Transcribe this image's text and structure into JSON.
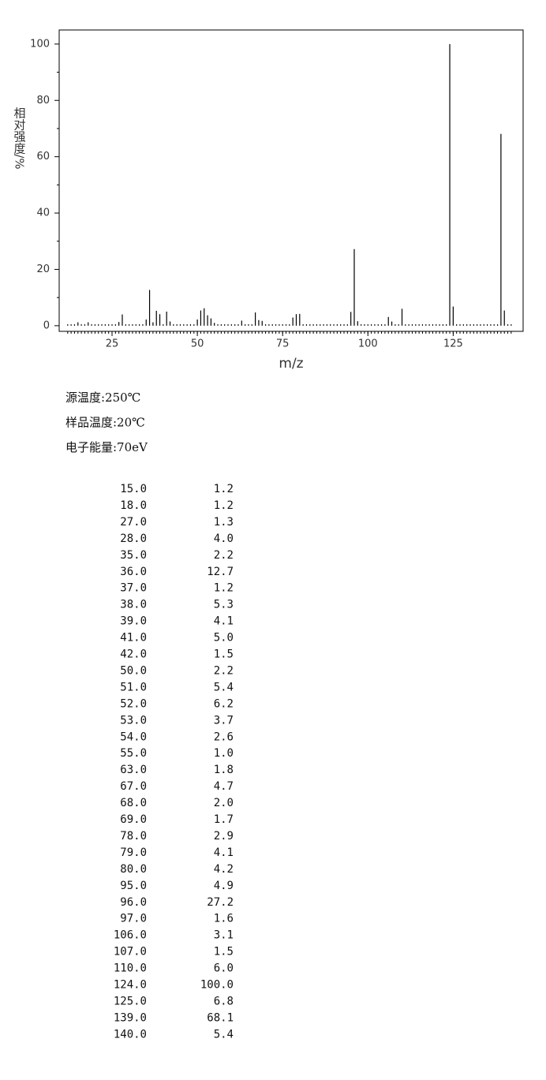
{
  "chart_data": {
    "type": "bar",
    "xlabel": "m/z",
    "ylabel": "相对强度/%",
    "color": "#000000",
    "x": [
      12,
      13,
      14,
      15,
      16,
      17,
      18,
      19,
      20,
      21,
      22,
      23,
      24,
      25,
      26,
      27,
      28,
      29,
      30,
      31,
      32,
      33,
      34,
      35,
      36,
      37,
      38,
      39,
      40,
      41,
      42,
      43,
      44,
      45,
      46,
      47,
      48,
      49,
      50,
      51,
      52,
      53,
      54,
      55,
      56,
      57,
      58,
      59,
      60,
      61,
      62,
      63,
      64,
      65,
      66,
      67,
      68,
      69,
      70,
      71,
      72,
      73,
      74,
      75,
      76,
      77,
      78,
      79,
      80,
      81,
      82,
      83,
      84,
      85,
      86,
      87,
      88,
      89,
      90,
      91,
      92,
      93,
      94,
      95,
      96,
      97,
      98,
      99,
      100,
      101,
      102,
      103,
      104,
      105,
      106,
      107,
      108,
      109,
      110,
      111,
      112,
      113,
      114,
      115,
      116,
      117,
      118,
      119,
      120,
      121,
      122,
      123,
      124,
      125,
      126,
      127,
      128,
      129,
      130,
      131,
      132,
      133,
      134,
      135,
      136,
      137,
      138,
      139,
      140,
      141,
      142
    ],
    "values": [
      0.5,
      0.5,
      0.5,
      1.2,
      0.5,
      0.5,
      1.2,
      0.5,
      0.5,
      0.5,
      0.5,
      0.5,
      0.5,
      0.5,
      0.5,
      1.3,
      4.0,
      0.5,
      0.5,
      0.5,
      0.5,
      0.5,
      0.5,
      2.2,
      12.7,
      1.2,
      5.3,
      4.1,
      0.5,
      5.0,
      1.5,
      0.5,
      0.5,
      0.5,
      0.5,
      0.5,
      0.5,
      0.5,
      2.2,
      5.4,
      6.2,
      3.7,
      2.6,
      1.0,
      0.5,
      0.5,
      0.5,
      0.5,
      0.5,
      0.5,
      0.5,
      1.8,
      0.5,
      0.5,
      0.5,
      4.7,
      2.0,
      1.7,
      0.5,
      0.5,
      0.5,
      0.5,
      0.5,
      0.5,
      0.5,
      0.5,
      2.9,
      4.1,
      4.2,
      0.5,
      0.5,
      0.5,
      0.5,
      0.5,
      0.5,
      0.5,
      0.5,
      0.5,
      0.5,
      0.5,
      0.5,
      0.5,
      0.5,
      4.9,
      27.2,
      1.6,
      0.5,
      0.5,
      0.5,
      0.5,
      0.5,
      0.5,
      0.5,
      0.5,
      3.1,
      1.5,
      0.5,
      0.5,
      6.0,
      0.5,
      0.5,
      0.5,
      0.5,
      0.5,
      0.5,
      0.5,
      0.5,
      0.5,
      0.5,
      0.5,
      0.5,
      0.5,
      100,
      6.8,
      0.5,
      0.5,
      0.5,
      0.5,
      0.5,
      0.5,
      0.5,
      0.5,
      0.5,
      0.5,
      0.5,
      0.5,
      0.5,
      68.1,
      5.4,
      0.5,
      0.5
    ],
    "xlim": [
      9.5,
      145.5
    ],
    "ylim": [
      -2,
      105
    ],
    "xticks": [
      25,
      50,
      75,
      100,
      125
    ],
    "yticks": [
      0,
      20,
      40,
      60,
      80,
      100
    ],
    "yminorticks": [
      10,
      30,
      50,
      70,
      90
    ]
  },
  "conditions": [
    "源温度:250℃",
    "样品温度:20℃",
    "电子能量:70eV"
  ],
  "table": {
    "rows": [
      [
        "15.0",
        "1.2"
      ],
      [
        "18.0",
        "1.2"
      ],
      [
        "27.0",
        "1.3"
      ],
      [
        "28.0",
        "4.0"
      ],
      [
        "35.0",
        "2.2"
      ],
      [
        "36.0",
        "12.7"
      ],
      [
        "37.0",
        "1.2"
      ],
      [
        "38.0",
        "5.3"
      ],
      [
        "39.0",
        "4.1"
      ],
      [
        "41.0",
        "5.0"
      ],
      [
        "42.0",
        "1.5"
      ],
      [
        "50.0",
        "2.2"
      ],
      [
        "51.0",
        "5.4"
      ],
      [
        "52.0",
        "6.2"
      ],
      [
        "53.0",
        "3.7"
      ],
      [
        "54.0",
        "2.6"
      ],
      [
        "55.0",
        "1.0"
      ],
      [
        "63.0",
        "1.8"
      ],
      [
        "67.0",
        "4.7"
      ],
      [
        "68.0",
        "2.0"
      ],
      [
        "69.0",
        "1.7"
      ],
      [
        "78.0",
        "2.9"
      ],
      [
        "79.0",
        "4.1"
      ],
      [
        "80.0",
        "4.2"
      ],
      [
        "95.0",
        "4.9"
      ],
      [
        "96.0",
        "27.2"
      ],
      [
        "97.0",
        "1.6"
      ],
      [
        "106.0",
        "3.1"
      ],
      [
        "107.0",
        "1.5"
      ],
      [
        "110.0",
        "6.0"
      ],
      [
        "124.0",
        "100.0"
      ],
      [
        "125.0",
        "6.8"
      ],
      [
        "139.0",
        "68.1"
      ],
      [
        "140.0",
        "5.4"
      ]
    ]
  }
}
